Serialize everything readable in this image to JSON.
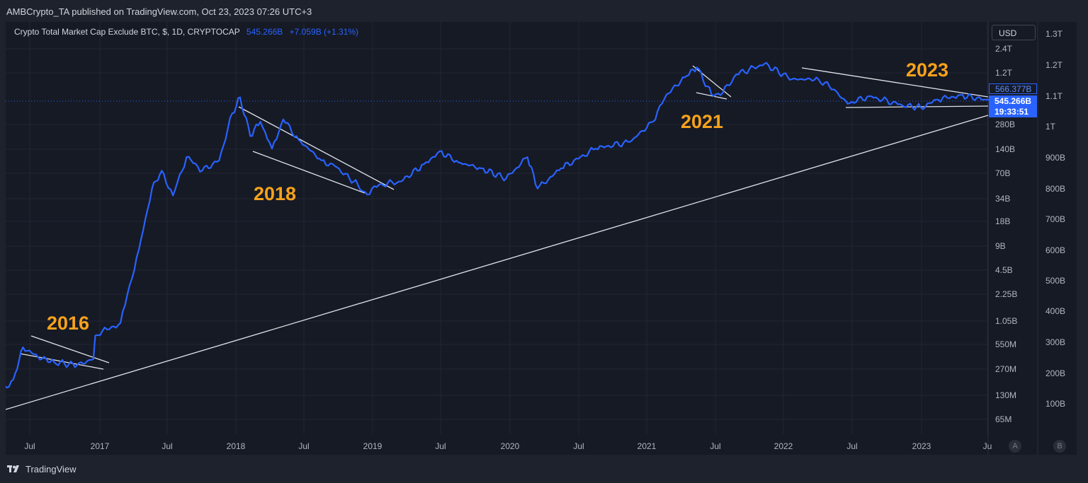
{
  "header": {
    "published": "AMBCrypto_TA published on TradingView.com, Oct 23, 2023 07:26 UTC+3"
  },
  "legend": {
    "symbol": "Crypto Total Market Cap Exclude BTC, $, 1D, CRYPTOCAP",
    "value": "545.266B",
    "change": "+7.059B (+1.31%)"
  },
  "toolbar": {
    "currency": "USD"
  },
  "price_tags": {
    "reference": "566.377B",
    "last": "545.266B",
    "countdown": "19:33:51"
  },
  "axis_buttons": {
    "left": "A",
    "right": "B"
  },
  "footer": {
    "brand": "TradingView"
  },
  "colors": {
    "background": "#161a25",
    "line": "#2962ff",
    "annotation": "#f7a21b",
    "trendline": "#e0e3eb"
  },
  "chart_data": {
    "type": "line",
    "title": "Crypto Total Market Cap Exclude BTC, $, 1D, CRYPTOCAP",
    "scale": "log",
    "x_ticks": [
      "Jul",
      "2017",
      "Jul",
      "2018",
      "Jul",
      "2019",
      "Jul",
      "2020",
      "Jul",
      "2021",
      "Jul",
      "2022",
      "Jul",
      "2023",
      "Ju"
    ],
    "y_ticks_left": [
      "2.4T",
      "1.2T",
      "566.377B",
      "280B",
      "140B",
      "70B",
      "34B",
      "18B",
      "9B",
      "4.5B",
      "2.25B",
      "1.05B",
      "550M",
      "270M",
      "130M",
      "65M"
    ],
    "y_ticks_right": [
      "1.3T",
      "1.2T",
      "1.1T",
      "1T",
      "900B",
      "800B",
      "700B",
      "600B",
      "500B",
      "400B",
      "300B",
      "200B",
      "100B"
    ],
    "annotations": [
      "2016",
      "2018",
      "2021",
      "2023"
    ],
    "series": [
      {
        "values": [
          [
            "2016-04-01",
            120000000
          ],
          [
            "2016-05-15",
            200000000
          ],
          [
            "2016-06-10",
            500000000
          ],
          [
            "2016-07-20",
            380000000
          ],
          [
            "2016-09-01",
            330000000
          ],
          [
            "2016-11-01",
            300000000
          ],
          [
            "2016-12-15",
            360000000
          ],
          [
            "2016-12-20",
            700000000
          ],
          [
            "2017-01-20",
            830000000
          ],
          [
            "2017-02-25",
            1000000000
          ],
          [
            "2017-03-15",
            2200000000
          ],
          [
            "2017-04-15",
            8000000000
          ],
          [
            "2017-05-20",
            45000000000
          ],
          [
            "2017-06-15",
            75000000000
          ],
          [
            "2017-07-15",
            37000000000
          ],
          [
            "2017-08-20",
            110000000000
          ],
          [
            "2017-10-01",
            75000000000
          ],
          [
            "2017-11-15",
            100000000000
          ],
          [
            "2017-12-20",
            380000000000
          ],
          [
            "2018-01-10",
            600000000000
          ],
          [
            "2018-02-06",
            200000000000
          ],
          [
            "2018-03-05",
            300000000000
          ],
          [
            "2018-04-05",
            140000000000
          ],
          [
            "2018-05-05",
            320000000000
          ],
          [
            "2018-06-15",
            180000000000
          ],
          [
            "2018-08-15",
            100000000000
          ],
          [
            "2018-09-20",
            85000000000
          ],
          [
            "2018-11-20",
            50000000000
          ],
          [
            "2018-12-15",
            38000000000
          ],
          [
            "2019-01-15",
            50000000000
          ],
          [
            "2019-03-15",
            55000000000
          ],
          [
            "2019-05-15",
            90000000000
          ],
          [
            "2019-06-26",
            130000000000
          ],
          [
            "2019-08-15",
            95000000000
          ],
          [
            "2019-10-15",
            80000000000
          ],
          [
            "2019-12-20",
            60000000000
          ],
          [
            "2020-02-15",
            110000000000
          ],
          [
            "2020-03-13",
            45000000000
          ],
          [
            "2020-05-15",
            80000000000
          ],
          [
            "2020-08-15",
            140000000000
          ],
          [
            "2020-11-15",
            170000000000
          ],
          [
            "2021-01-15",
            300000000000
          ],
          [
            "2021-02-20",
            650000000000
          ],
          [
            "2021-04-15",
            1100000000000
          ],
          [
            "2021-05-12",
            1400000000000
          ],
          [
            "2021-06-20",
            650000000000
          ],
          [
            "2021-07-20",
            680000000000
          ],
          [
            "2021-08-25",
            1150000000000
          ],
          [
            "2021-11-08",
            1550000000000
          ],
          [
            "2022-01-20",
            1000000000000
          ],
          [
            "2022-04-01",
            1000000000000
          ],
          [
            "2022-05-12",
            750000000000
          ],
          [
            "2022-06-18",
            500000000000
          ],
          [
            "2022-08-15",
            620000000000
          ],
          [
            "2022-11-10",
            480000000000
          ],
          [
            "2022-12-30",
            450000000000
          ],
          [
            "2023-02-15",
            560000000000
          ],
          [
            "2023-04-15",
            640000000000
          ],
          [
            "2023-06-15",
            560000000000
          ],
          [
            "2023-08-15",
            560000000000
          ],
          [
            "2023-10-22",
            545266000000
          ]
        ]
      }
    ]
  }
}
